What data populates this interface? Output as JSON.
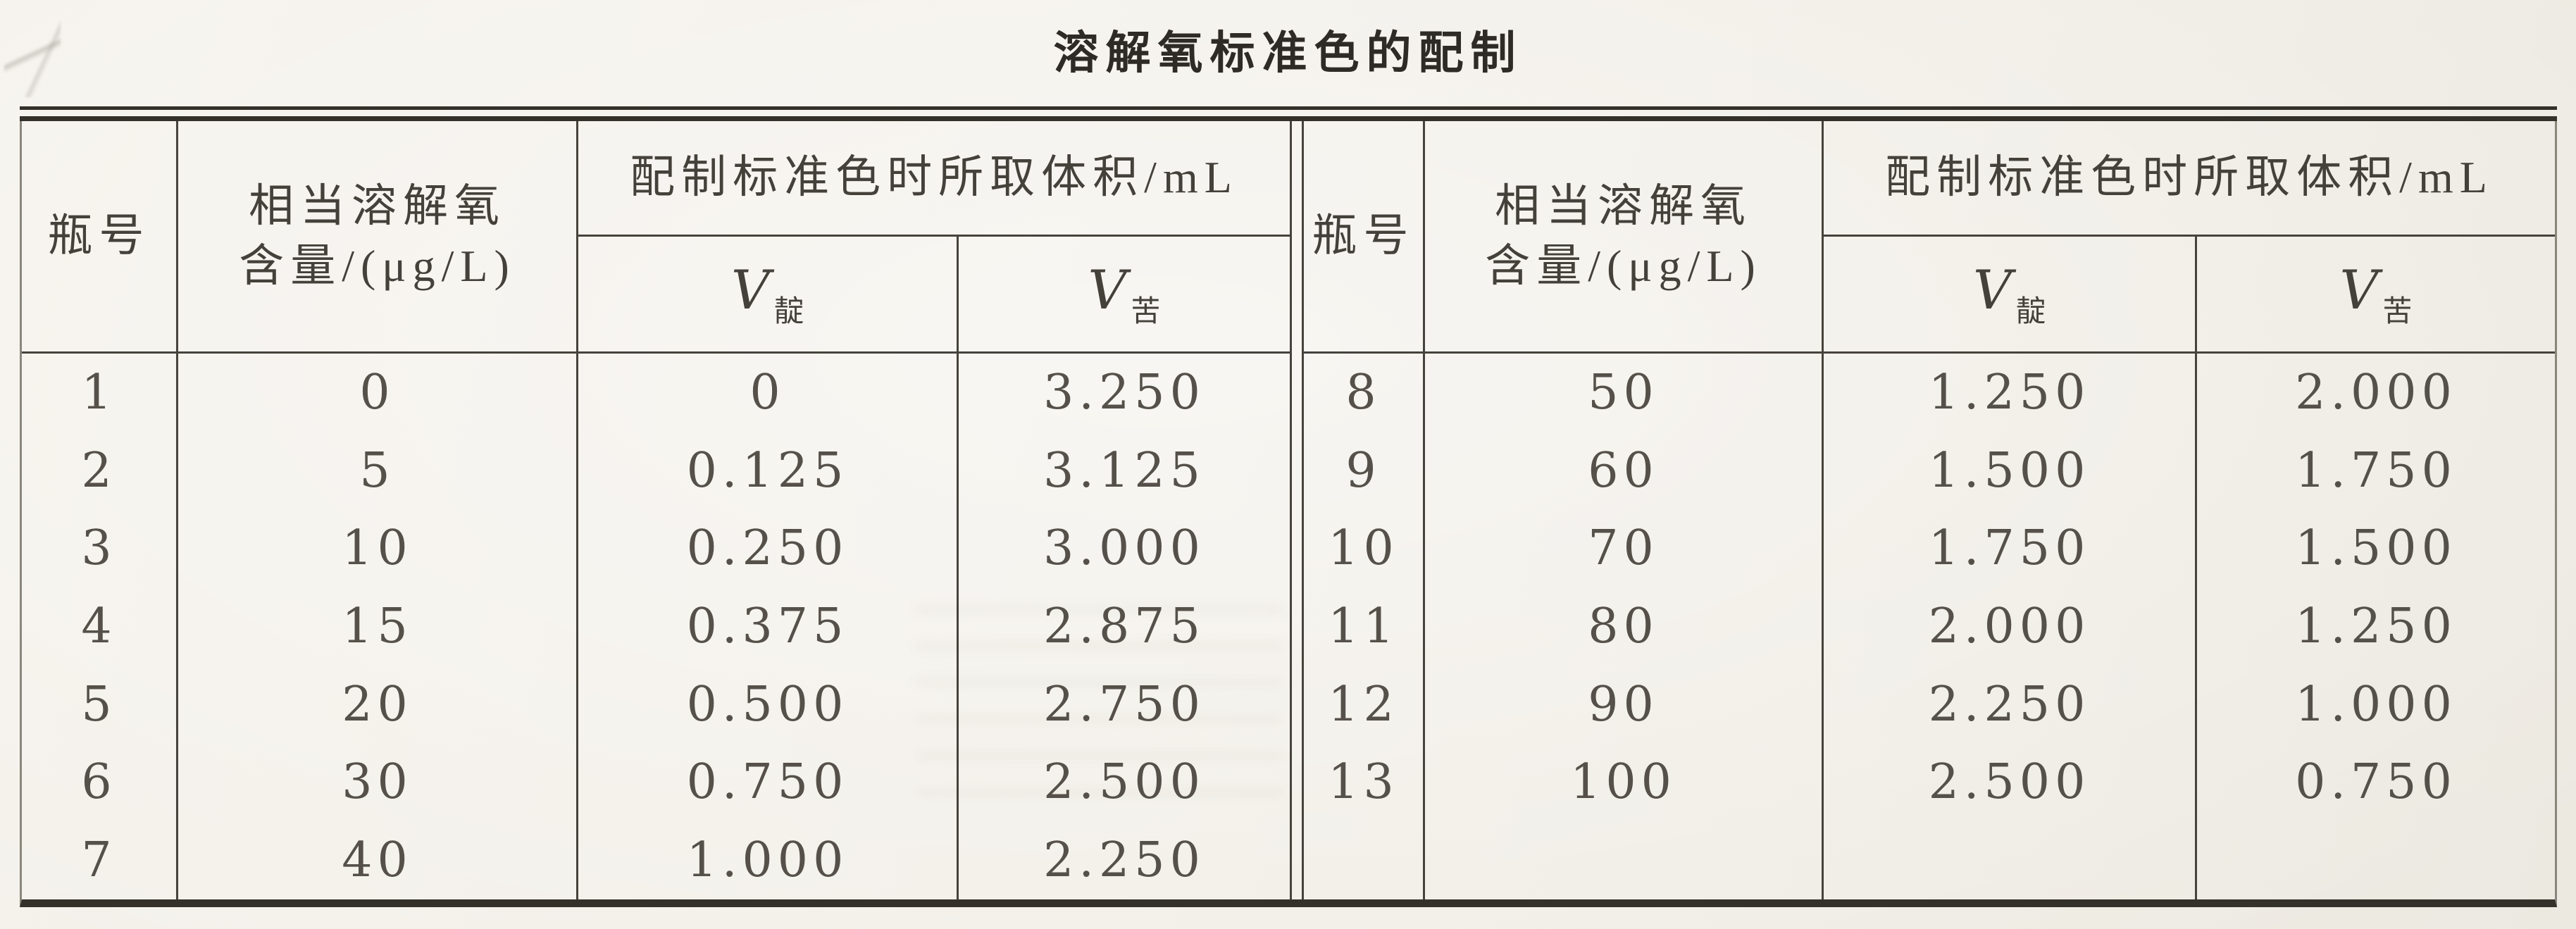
{
  "title": "溶解氧标准色的配制",
  "columns": {
    "bottle_no": "瓶号",
    "do_line1": "相当溶解氧",
    "do_line2": "含量/(μg/L)",
    "volume_group": "配制标准色时所取体积/mL",
    "v_symbol": "V",
    "v_indigo_sub": "靛",
    "v_picric_sub": "苦"
  },
  "left": {
    "rows": [
      {
        "bottle": "1",
        "do": "0",
        "v_indigo": "0",
        "v_picric": "3.250"
      },
      {
        "bottle": "2",
        "do": "5",
        "v_indigo": "0.125",
        "v_picric": "3.125"
      },
      {
        "bottle": "3",
        "do": "10",
        "v_indigo": "0.250",
        "v_picric": "3.000"
      },
      {
        "bottle": "4",
        "do": "15",
        "v_indigo": "0.375",
        "v_picric": "2.875"
      },
      {
        "bottle": "5",
        "do": "20",
        "v_indigo": "0.500",
        "v_picric": "2.750"
      },
      {
        "bottle": "6",
        "do": "30",
        "v_indigo": "0.750",
        "v_picric": "2.500"
      },
      {
        "bottle": "7",
        "do": "40",
        "v_indigo": "1.000",
        "v_picric": "2.250"
      }
    ]
  },
  "right": {
    "rows": [
      {
        "bottle": "8",
        "do": "50",
        "v_indigo": "1.250",
        "v_picric": "2.000"
      },
      {
        "bottle": "9",
        "do": "60",
        "v_indigo": "1.500",
        "v_picric": "1.750"
      },
      {
        "bottle": "10",
        "do": "70",
        "v_indigo": "1.750",
        "v_picric": "1.500"
      },
      {
        "bottle": "11",
        "do": "80",
        "v_indigo": "2.000",
        "v_picric": "1.250"
      },
      {
        "bottle": "12",
        "do": "90",
        "v_indigo": "2.250",
        "v_picric": "1.000"
      },
      {
        "bottle": "13",
        "do": "100",
        "v_indigo": "2.500",
        "v_picric": "0.750"
      }
    ]
  },
  "colors": {
    "paper": "#f2efe8",
    "line": "#46433c",
    "thick_rule": "#34312b",
    "number_ink": "#55514a",
    "header_ink": "#44413b",
    "title_ink": "#2e2b26"
  }
}
